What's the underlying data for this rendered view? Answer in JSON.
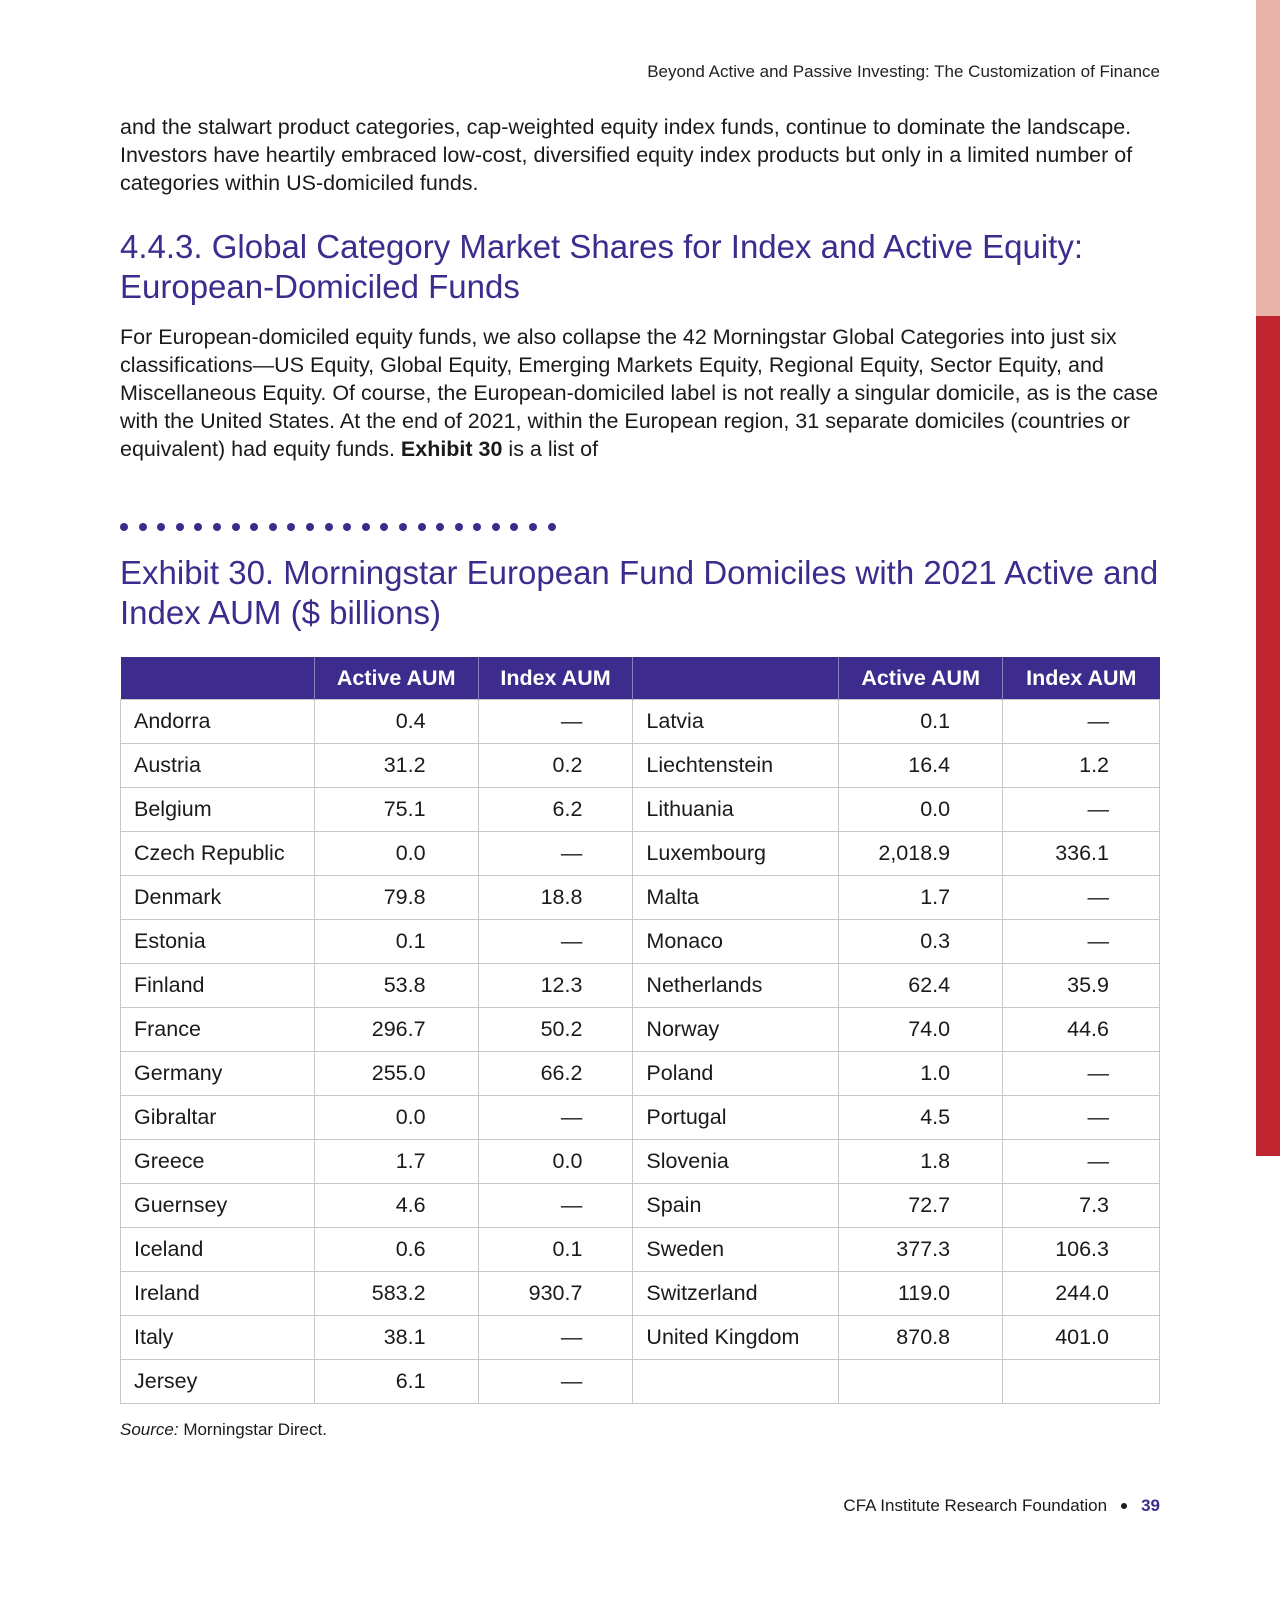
{
  "running_head": "Beyond Active and Passive Investing: The Customization of Finance",
  "intro_paragraph": "and the stalwart product categories, cap-weighted equity index funds, continue to dominate the landscape. Investors have heartily embraced low-cost, diversified equity index products but only in a limited number of categories within US-domiciled funds.",
  "section": {
    "title": "4.4.3. Global Category Market Shares for Index and Active Equity: European-Domiciled Funds",
    "paragraph_before": "For European-domiciled equity funds, we also collapse the 42 Morningstar Global Categories into just six classifications—US Equity, Global Equity, Emerging Markets Equity, Regional Equity, Sector Equity, and Miscellaneous Equity. Of course, the European-domiciled label is not really a singular domicile, as is the case with the United States. At the end of 2021, within the European region, 31 separate domiciles (countries or equivalent) had equity funds. ",
    "paragraph_bold": "Exhibit 30",
    "paragraph_after": " is a list of"
  },
  "exhibit": {
    "title": "Exhibit 30. Morningstar European Fund Domiciles with 2021 Active and Index AUM ($ billions)",
    "headers": [
      "",
      "Active AUM",
      "Index AUM",
      "",
      "Active AUM",
      "Index AUM"
    ],
    "rows": [
      [
        "Andorra",
        "0.4",
        "—",
        "Latvia",
        "0.1",
        "—"
      ],
      [
        "Austria",
        "31.2",
        "0.2",
        "Liechtenstein",
        "16.4",
        "1.2"
      ],
      [
        "Belgium",
        "75.1",
        "6.2",
        "Lithuania",
        "0.0",
        "—"
      ],
      [
        "Czech Republic",
        "0.0",
        "—",
        "Luxembourg",
        "2,018.9",
        "336.1"
      ],
      [
        "Denmark",
        "79.8",
        "18.8",
        "Malta",
        "1.7",
        "—"
      ],
      [
        "Estonia",
        "0.1",
        "—",
        "Monaco",
        "0.3",
        "—"
      ],
      [
        "Finland",
        "53.8",
        "12.3",
        "Netherlands",
        "62.4",
        "35.9"
      ],
      [
        "France",
        "296.7",
        "50.2",
        "Norway",
        "74.0",
        "44.6"
      ],
      [
        "Germany",
        "255.0",
        "66.2",
        "Poland",
        "1.0",
        "—"
      ],
      [
        "Gibraltar",
        "0.0",
        "—",
        "Portugal",
        "4.5",
        "—"
      ],
      [
        "Greece",
        "1.7",
        "0.0",
        "Slovenia",
        "1.8",
        "—"
      ],
      [
        "Guernsey",
        "4.6",
        "—",
        "Spain",
        "72.7",
        "7.3"
      ],
      [
        "Iceland",
        "0.6",
        "0.1",
        "Sweden",
        "377.3",
        "106.3"
      ],
      [
        "Ireland",
        "583.2",
        "930.7",
        "Switzerland",
        "119.0",
        "244.0"
      ],
      [
        "Italy",
        "38.1",
        "—",
        "United Kingdom",
        "870.8",
        "401.0"
      ],
      [
        "Jersey",
        "6.1",
        "—",
        "",
        "",
        ""
      ]
    ],
    "source_label": "Source:",
    "source_text": " Morningstar Direct."
  },
  "footer": {
    "publisher": "CFA Institute Research Foundation",
    "page_number": "39"
  },
  "colors": {
    "accent_purple": "#3d2c8d",
    "edge_tab_light": "#e8b3a8",
    "edge_tab_red": "#c0242f"
  }
}
